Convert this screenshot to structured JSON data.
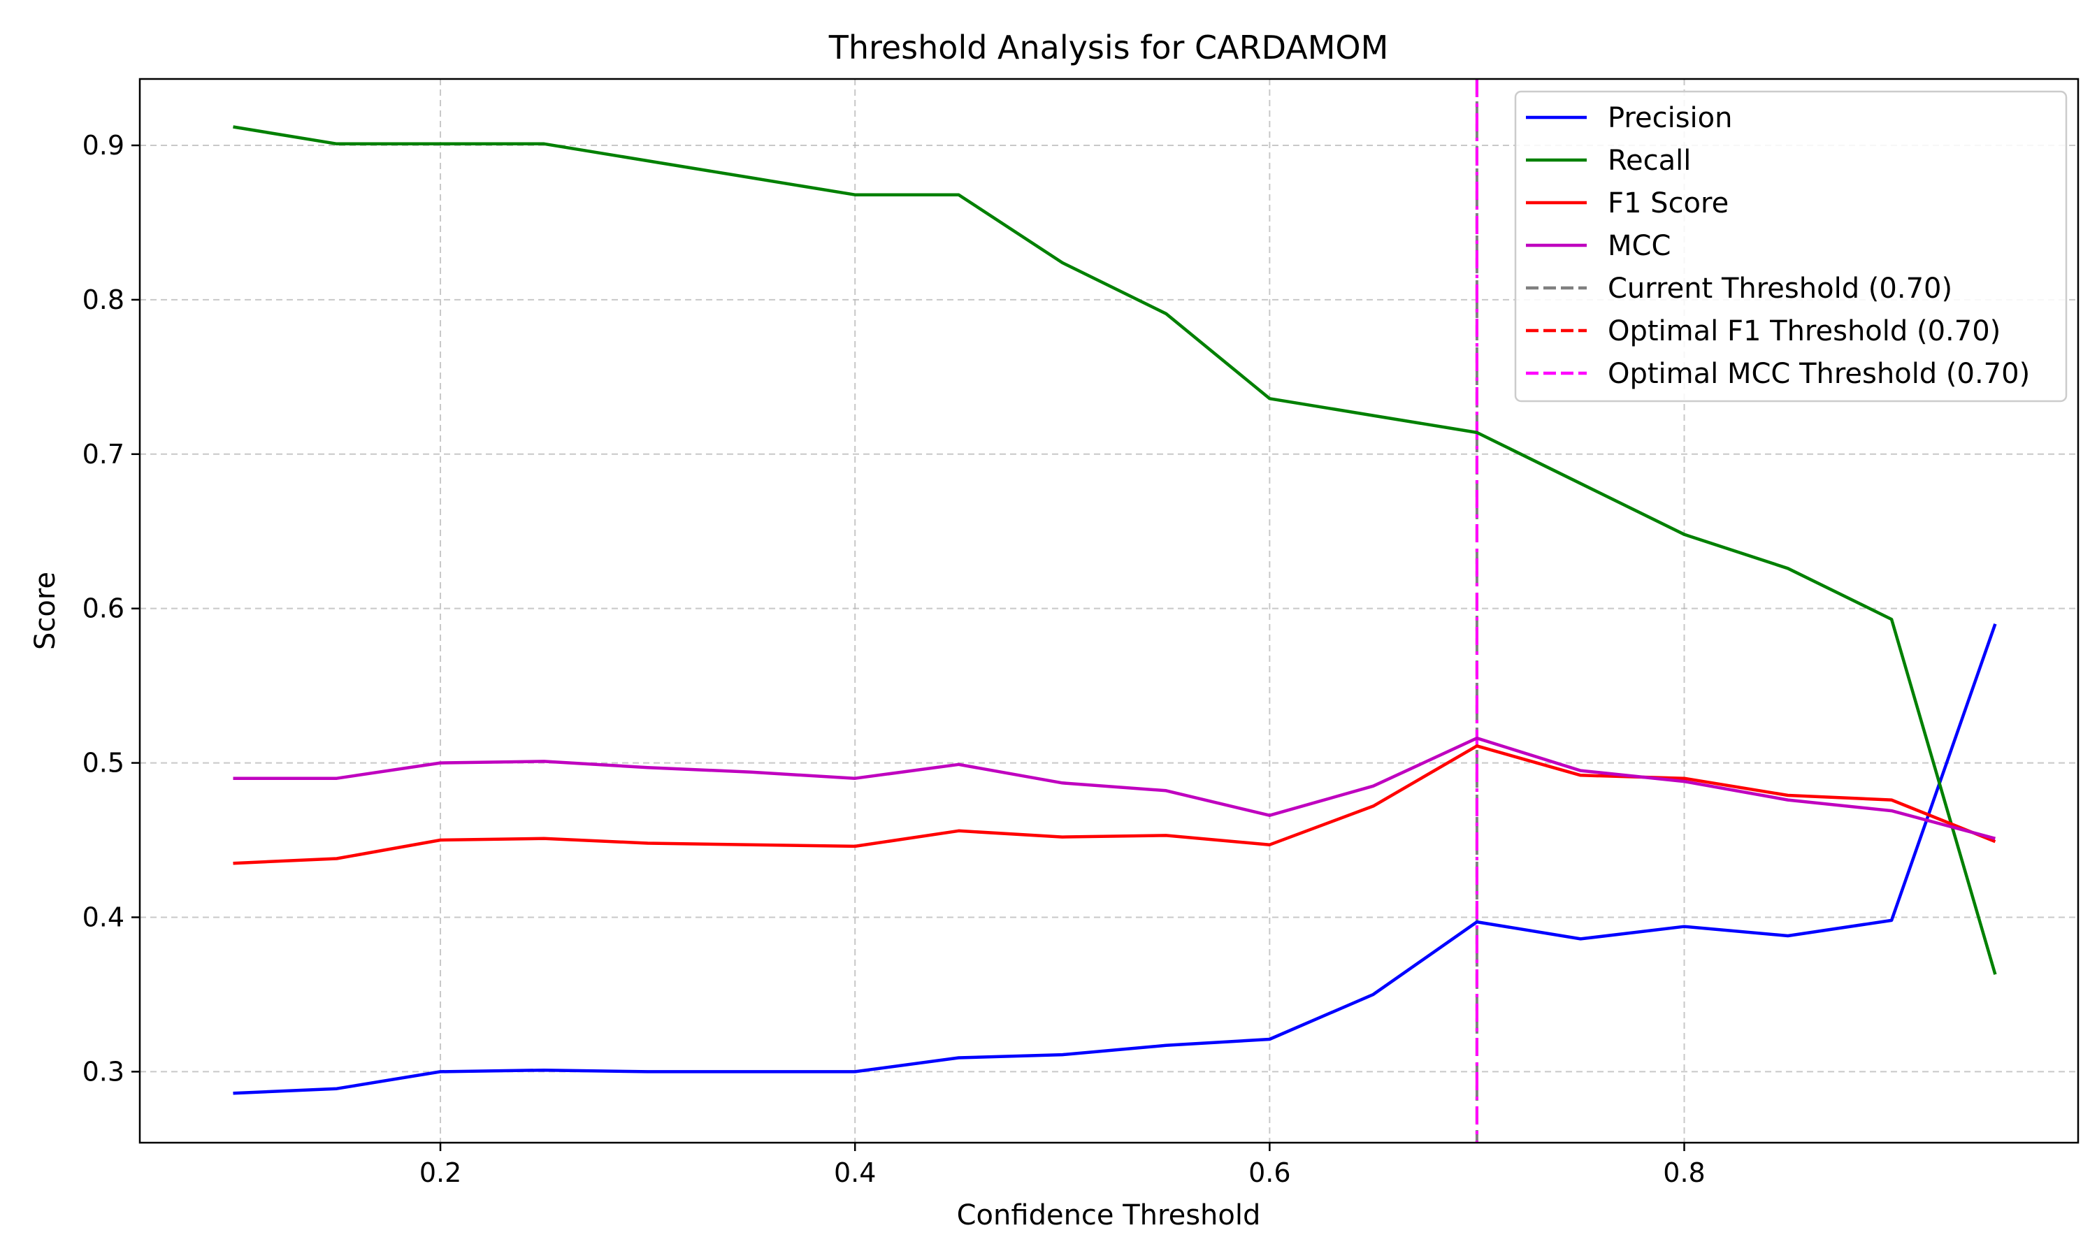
{
  "chart_data": {
    "type": "line",
    "title": "Threshold Analysis for CARDAMOM",
    "xlabel": "Confidence Threshold",
    "ylabel": "Score",
    "xlim": [
      0.055,
      0.99
    ],
    "ylim": [
      0.254,
      0.943
    ],
    "xticks": [
      0.2,
      0.4,
      0.6,
      0.8
    ],
    "xtick_labels": [
      "0.2",
      "0.4",
      "0.6",
      "0.8"
    ],
    "yticks": [
      0.3,
      0.4,
      0.5,
      0.6,
      0.7,
      0.8,
      0.9
    ],
    "ytick_labels": [
      "0.3",
      "0.4",
      "0.5",
      "0.6",
      "0.7",
      "0.8",
      "0.9"
    ],
    "grid": true,
    "legend_position": "top-right",
    "x": [
      0.1,
      0.15,
      0.2,
      0.25,
      0.3,
      0.35,
      0.4,
      0.45,
      0.5,
      0.55,
      0.6,
      0.65,
      0.7,
      0.75,
      0.8,
      0.85,
      0.9,
      0.95
    ],
    "series": [
      {
        "name": "Precision",
        "color": "#0000ff",
        "values": [
          0.286,
          0.289,
          0.3,
          0.301,
          0.3,
          0.3,
          0.3,
          0.309,
          0.311,
          0.317,
          0.321,
          0.35,
          0.397,
          0.386,
          0.394,
          0.388,
          0.398,
          0.59
        ]
      },
      {
        "name": "Recall",
        "color": "#008000",
        "values": [
          0.912,
          0.901,
          0.901,
          0.901,
          0.89,
          0.879,
          0.868,
          0.868,
          0.824,
          0.791,
          0.736,
          0.725,
          0.714,
          0.681,
          0.648,
          0.626,
          0.593,
          0.363
        ]
      },
      {
        "name": "F1 Score",
        "color": "#ff0000",
        "values": [
          0.435,
          0.438,
          0.45,
          0.451,
          0.448,
          0.447,
          0.446,
          0.456,
          0.452,
          0.453,
          0.447,
          0.472,
          0.511,
          0.492,
          0.49,
          0.479,
          0.476,
          0.449
        ]
      },
      {
        "name": "MCC",
        "color": "#bf00bf",
        "values": [
          0.49,
          0.49,
          0.5,
          0.501,
          0.497,
          0.494,
          0.49,
          0.499,
          0.487,
          0.482,
          0.466,
          0.485,
          0.516,
          0.495,
          0.488,
          0.476,
          0.469,
          0.451
        ]
      }
    ],
    "threshold_lines": [
      {
        "name": "Current Threshold (0.70)",
        "x": 0.7,
        "color": "#808080",
        "style": "dashed"
      },
      {
        "name": "Optimal F1 Threshold (0.70)",
        "x": 0.7,
        "color": "#ff0000",
        "style": "dashdot"
      },
      {
        "name": "Optimal MCC Threshold (0.70)",
        "x": 0.7,
        "color": "#ff00ff",
        "style": "dashdot"
      }
    ]
  }
}
